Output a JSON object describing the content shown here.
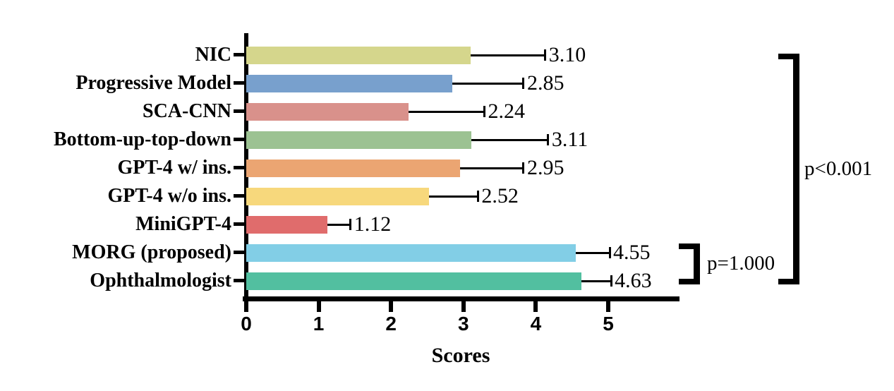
{
  "figure": {
    "background": "#ffffff",
    "axis_color": "#000000",
    "text_color": "#000000"
  },
  "chart_data": {
    "type": "bar",
    "orientation": "horizontal",
    "title": "",
    "xlabel": "Scores",
    "ylabel": "",
    "xlim": [
      0,
      6
    ],
    "x_ticks": [
      0,
      1,
      2,
      3,
      4,
      5
    ],
    "x_tick_labels": [
      "0",
      "1",
      "2",
      "3",
      "4",
      "5"
    ],
    "grid": false,
    "legend": null,
    "categories": [
      "NIC",
      "Progressive Model",
      "SCA-CNN",
      "Bottom-up-top-down",
      "GPT-4 w/ ins.",
      "GPT-4 w/o ins.",
      "MiniGPT-4",
      "MORG (proposed)",
      "Ophthalmologist"
    ],
    "values": [
      3.1,
      2.85,
      2.24,
      3.11,
      2.95,
      2.52,
      1.12,
      4.55,
      4.63
    ],
    "value_labels": [
      "3.10",
      "2.85",
      "2.24",
      "3.11",
      "2.95",
      "2.52",
      "1.12",
      "4.55",
      "4.63"
    ],
    "errors": [
      1.03,
      0.98,
      1.05,
      1.06,
      0.88,
      0.68,
      0.32,
      0.47,
      0.41
    ],
    "bar_colors": [
      "#d5d68c",
      "#78a0cd",
      "#d9918b",
      "#9cc292",
      "#eba572",
      "#f7d87c",
      "#e06c6c",
      "#82cee6",
      "#52bfa0"
    ],
    "annotations": [
      {
        "label": "p<0.001",
        "from_category": "NIC",
        "to_category": "Ophthalmologist"
      },
      {
        "label": "p=1.000",
        "from_category": "MORG (proposed)",
        "to_category": "Ophthalmologist"
      }
    ]
  }
}
